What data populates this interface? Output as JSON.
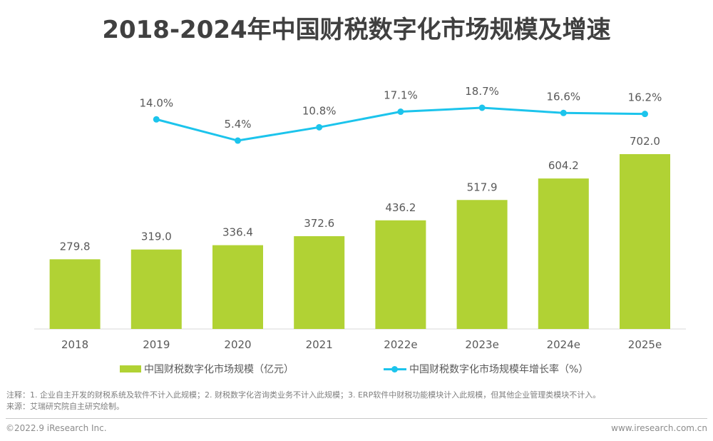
{
  "chart_data": {
    "type": "bar",
    "title": "2018-2024年中国财税数字化市场规模及增速",
    "categories": [
      "2018",
      "2019",
      "2020",
      "2021",
      "2022e",
      "2023e",
      "2024e",
      "2025e"
    ],
    "series": [
      {
        "name": "中国财税数字化市场规模（亿元）",
        "type": "bar",
        "color": "#b1d234",
        "values": [
          279.8,
          319.0,
          336.4,
          372.6,
          436.2,
          517.9,
          604.2,
          702.0
        ],
        "labels": [
          "279.8",
          "319.0",
          "336.4",
          "372.6",
          "436.2",
          "517.9",
          "604.2",
          "702.0"
        ]
      },
      {
        "name": "中国财税数字化市场规模年增长率（%）",
        "type": "line",
        "color": "#1cc4ec",
        "values": [
          null,
          14.0,
          5.4,
          10.8,
          17.1,
          18.7,
          16.6,
          16.2
        ],
        "labels": [
          "",
          "14.0%",
          "5.4%",
          "10.8%",
          "17.1%",
          "18.7%",
          "16.6%",
          "16.2%"
        ]
      }
    ],
    "xlabel": "",
    "ylabel": "",
    "ylim": [
      0,
      702
    ],
    "grid": false,
    "legend": "bottom-center"
  },
  "page": {
    "title": "2018-2024年中国财税数字化市场规模及增速",
    "legend_bar": "中国财税数字化市场规模（亿元）",
    "legend_line": "中国财税数字化市场规模年增长率（%）",
    "note": "注释：1. 企业自主开发的财税系统及软件不计入此规模；2. 财税数字化咨询类业务不计入此规模；3. ERP软件中财税功能模块计入此规模，但其他企业管理类模块不计入。",
    "source": "来源：艾瑞研究院自主研究绘制。",
    "copyright": "©2022.9 iResearch Inc.",
    "website": "www.iresearch.com.cn"
  }
}
